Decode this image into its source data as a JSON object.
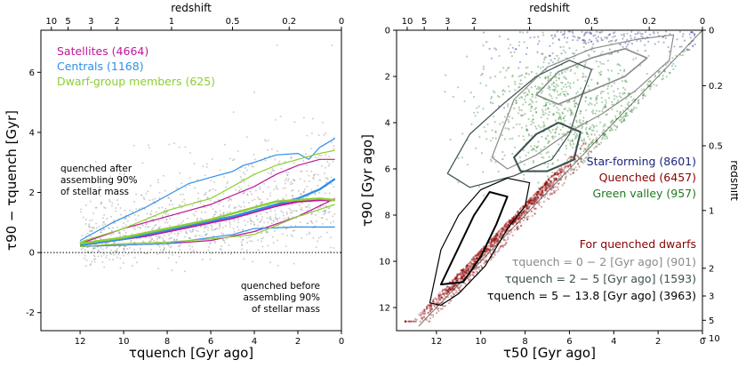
{
  "chart_data": [
    {
      "type": "scatter",
      "panel": "left",
      "xlabel": "τquench [Gyr ago]",
      "ylabel": "τ90 − τquench [Gyr]",
      "top_axis_label": "redshift",
      "xlim": [
        13.8,
        0
      ],
      "ylim": [
        -2.6,
        7.4
      ],
      "x_ticks": [
        12,
        10,
        8,
        6,
        4,
        2,
        0
      ],
      "y_ticks": [
        -2,
        0,
        2,
        4,
        6
      ],
      "top_ticks": [
        {
          "label": "10",
          "age": 13.32
        },
        {
          "label": "5",
          "age": 12.55
        },
        {
          "label": "3",
          "age": 11.5
        },
        {
          "label": "2",
          "age": 10.3
        },
        {
          "label": "1",
          "age": 7.8
        },
        {
          "label": "0.5",
          "age": 5.0
        },
        {
          "label": "0.2",
          "age": 2.4
        },
        {
          "label": "0",
          "age": 0
        }
      ],
      "reference_line": {
        "y": 0,
        "style": "dotted"
      },
      "legend": [
        {
          "label": "Satellites (4664)",
          "color": "#c0189a"
        },
        {
          "label": "Centrals (1168)",
          "color": "#2f8fe8"
        },
        {
          "label": "Dwarf-group members (625)",
          "color": "#8ccf32"
        }
      ],
      "annotations": [
        {
          "lines": [
            "quenched after",
            "assembling 90%",
            "of stellar mass"
          ]
        },
        {
          "lines": [
            "quenched before",
            "assembling 90%",
            "of stellar mass"
          ]
        }
      ],
      "series": [
        {
          "name": "Satellites (4664)",
          "role": "median",
          "color": "#c0189a",
          "x": [
            12,
            11,
            10,
            9,
            8,
            7,
            6,
            5,
            4,
            3,
            2,
            1,
            0.3
          ],
          "y": [
            0.25,
            0.35,
            0.45,
            0.55,
            0.7,
            0.85,
            1.0,
            1.15,
            1.35,
            1.55,
            1.7,
            1.75,
            1.75
          ]
        },
        {
          "name": "Satellites (4664)",
          "role": "upper",
          "color": "#c0189a",
          "x": [
            12,
            10,
            8,
            6,
            4,
            3,
            2,
            1,
            0.3
          ],
          "y": [
            0.3,
            0.8,
            1.2,
            1.6,
            2.2,
            2.6,
            2.9,
            3.1,
            3.1
          ]
        },
        {
          "name": "Satellites (4664)",
          "role": "lower",
          "color": "#c0189a",
          "x": [
            12,
            10,
            8,
            6,
            4,
            2,
            0.3
          ],
          "y": [
            0.2,
            0.25,
            0.3,
            0.4,
            0.7,
            1.2,
            1.8
          ]
        },
        {
          "name": "Centrals (1168)",
          "role": "median",
          "color": "#2f8fe8",
          "x": [
            12,
            11,
            10,
            9,
            8,
            7,
            6,
            5,
            4,
            3,
            2,
            1,
            0.3
          ],
          "y": [
            0.25,
            0.35,
            0.45,
            0.6,
            0.75,
            0.9,
            1.05,
            1.2,
            1.4,
            1.6,
            1.8,
            2.1,
            2.45
          ]
        },
        {
          "name": "Centrals (1168)",
          "role": "upper",
          "color": "#2f8fe8",
          "x": [
            12,
            10.5,
            9,
            8,
            7,
            6,
            5,
            4.5,
            4,
            3,
            2,
            1.5,
            1,
            0.3
          ],
          "y": [
            0.4,
            1.0,
            1.5,
            1.9,
            2.3,
            2.5,
            2.7,
            2.9,
            3.0,
            3.25,
            3.3,
            3.1,
            3.5,
            3.8
          ]
        },
        {
          "name": "Centrals (1168)",
          "role": "lower",
          "color": "#2f8fe8",
          "x": [
            12,
            10,
            8,
            6,
            5,
            4,
            2,
            0.3
          ],
          "y": [
            0.2,
            0.25,
            0.3,
            0.5,
            0.6,
            0.8,
            0.85,
            0.85
          ]
        },
        {
          "name": "Dwarf-group members (625)",
          "role": "median",
          "color": "#8ccf32",
          "x": [
            12,
            11,
            10,
            9,
            8,
            7,
            6,
            5,
            4,
            3,
            2,
            1,
            0.3
          ],
          "y": [
            0.3,
            0.4,
            0.5,
            0.65,
            0.8,
            0.95,
            1.1,
            1.3,
            1.5,
            1.7,
            1.75,
            1.8,
            1.75
          ]
        },
        {
          "name": "Dwarf-group members (625)",
          "role": "upper",
          "color": "#8ccf32",
          "x": [
            12,
            10,
            8,
            6,
            4,
            3,
            2,
            1,
            0.3
          ],
          "y": [
            0.35,
            0.8,
            1.4,
            1.8,
            2.6,
            2.9,
            3.1,
            3.3,
            3.4
          ]
        },
        {
          "name": "Dwarf-group members (625)",
          "role": "lower",
          "color": "#8ccf32",
          "x": [
            12,
            10,
            8,
            6,
            4,
            2,
            0.3
          ],
          "y": [
            0.2,
            0.3,
            0.35,
            0.45,
            0.6,
            1.2,
            1.6
          ]
        }
      ],
      "point_color": "#9a9a9a"
    },
    {
      "type": "scatter",
      "panel": "right",
      "xlabel": "τ50 [Gyr ago]",
      "ylabel": "τ90 [Gyr ago]",
      "top_axis_label": "redshift",
      "right_axis_label": "redshift",
      "xlim": [
        13.8,
        0
      ],
      "ylim": [
        13.0,
        0
      ],
      "x_ticks": [
        12,
        10,
        8,
        6,
        4,
        2,
        0
      ],
      "y_ticks": [
        0,
        2,
        4,
        6,
        8,
        10,
        12
      ],
      "top_ticks": [
        {
          "label": "10",
          "age": 13.32
        },
        {
          "label": "5",
          "age": 12.55
        },
        {
          "label": "3",
          "age": 11.5
        },
        {
          "label": "2",
          "age": 10.3
        },
        {
          "label": "1",
          "age": 7.8
        },
        {
          "label": "0.5",
          "age": 5.0
        },
        {
          "label": "0.2",
          "age": 2.4
        },
        {
          "label": "0",
          "age": 0
        }
      ],
      "right_ticks": [
        {
          "label": "0",
          "age": 0
        },
        {
          "label": "0.2",
          "age": 2.4
        },
        {
          "label": "0.5",
          "age": 5.0
        },
        {
          "label": "1",
          "age": 7.8
        },
        {
          "label": "2",
          "age": 10.3
        },
        {
          "label": "3",
          "age": 11.5
        },
        {
          "label": "5",
          "age": 12.55
        },
        {
          "label": "10",
          "age": 13.32
        }
      ],
      "legend": [
        {
          "label": "Star-forming (8601)",
          "color": "#1a237e"
        },
        {
          "label": "Quenched (6457)",
          "color": "#8b0000"
        },
        {
          "label": "Green valley (957)",
          "color": "#1e7a1e"
        }
      ],
      "contour_legend_title": {
        "label": "For quenched dwarfs",
        "color": "#8b0000"
      },
      "contour_legend": [
        {
          "label": "τquench = 0 − 2 [Gyr ago] (901)",
          "color": "#8a8a8a"
        },
        {
          "label": "τquench = 2 − 5 [Gyr ago] (1593)",
          "color": "#3d4f4f"
        },
        {
          "label": "τquench = 5 − 13.8 [Gyr ago] (3963)",
          "color": "#000000"
        }
      ],
      "clouds": [
        {
          "name": "Star-forming (8601)",
          "color": "#1a237e",
          "center_x": 4.5,
          "center_y": 0.9,
          "spread_x": 3.2,
          "spread_y": 0.9
        },
        {
          "name": "Quenched (6457)",
          "color": "#8b0000",
          "center_x": 8.5,
          "center_y": 6.5,
          "spread_x": 2.2,
          "spread_y": 2.6
        },
        {
          "name": "Green valley (957)",
          "color": "#1e7a1e",
          "center_x": 6.0,
          "center_y": 3.5,
          "spread_x": 2.0,
          "spread_y": 1.5
        }
      ],
      "contours": [
        {
          "set": "0-2",
          "color": "#8a8a8a",
          "width": 1.2,
          "points": [
            [
              9.5,
              5.5
            ],
            [
              8.5,
              3.0
            ],
            [
              7,
              1.6
            ],
            [
              5,
              0.8
            ],
            [
              3,
              0.4
            ],
            [
              1.3,
              0.2
            ],
            [
              1.5,
              1.3
            ],
            [
              3,
              2.6
            ],
            [
              4.5,
              3.6
            ],
            [
              6,
              4.4
            ],
            [
              7.5,
              5.4
            ],
            [
              8.8,
              6.0
            ]
          ]
        },
        {
          "set": "0-2",
          "color": "#8a8a8a",
          "width": 1.6,
          "points": [
            [
              7.5,
              2.8
            ],
            [
              6.5,
              1.8
            ],
            [
              5,
              1.2
            ],
            [
              3.5,
              0.8
            ],
            [
              2.5,
              1.2
            ],
            [
              3.5,
              2.0
            ],
            [
              5,
              2.6
            ],
            [
              6.5,
              3.2
            ]
          ]
        },
        {
          "set": "2-5",
          "color": "#3d4f4f",
          "width": 1.2,
          "points": [
            [
              11.5,
              6.2
            ],
            [
              10.5,
              4.5
            ],
            [
              9,
              3.2
            ],
            [
              7.5,
              2.0
            ],
            [
              6,
              1.3
            ],
            [
              5,
              1.7
            ],
            [
              5.5,
              3.0
            ],
            [
              6,
              4.5
            ],
            [
              6.8,
              5.6
            ],
            [
              8.5,
              6.3
            ],
            [
              10.5,
              6.8
            ]
          ]
        },
        {
          "set": "2-5",
          "color": "#3d4f4f",
          "width": 2.0,
          "points": [
            [
              8.5,
              5.5
            ],
            [
              7.5,
              4.5
            ],
            [
              6.5,
              4.0
            ],
            [
              5.5,
              4.4
            ],
            [
              5.8,
              5.6
            ],
            [
              7,
              6.1
            ],
            [
              8.2,
              6.1
            ]
          ]
        },
        {
          "set": "5-13.8",
          "color": "#000000",
          "width": 1.2,
          "points": [
            [
              12.3,
              11.8
            ],
            [
              11.8,
              9.5
            ],
            [
              11,
              8.0
            ],
            [
              10,
              6.9
            ],
            [
              8.8,
              6.4
            ],
            [
              7.8,
              6.6
            ],
            [
              8,
              7.6
            ],
            [
              8.8,
              8.6
            ],
            [
              9.8,
              10.2
            ],
            [
              11,
              11.4
            ],
            [
              11.8,
              11.9
            ]
          ]
        },
        {
          "set": "5-13.8",
          "color": "#000000",
          "width": 2.0,
          "points": [
            [
              11.8,
              11.0
            ],
            [
              11,
              9.4
            ],
            [
              10.3,
              8.0
            ],
            [
              9.6,
              7.0
            ],
            [
              8.8,
              7.2
            ],
            [
              9.3,
              8.4
            ],
            [
              10,
              9.8
            ],
            [
              10.8,
              10.9
            ]
          ]
        }
      ],
      "reference_line": {
        "style": "one-to-one"
      }
    }
  ]
}
